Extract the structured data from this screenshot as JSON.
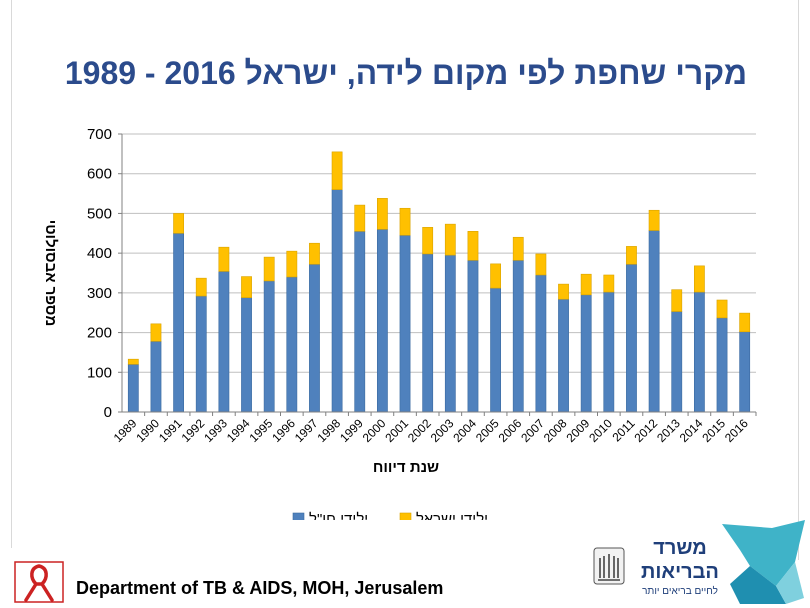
{
  "slide": {
    "title": "מקרי שחפת לפי מקום לידה, ישראל 2016 - 1989",
    "footer": "Department of TB & AIDS, MOH, Jerusalem",
    "logo_text": {
      "line1": "משרד",
      "line2": "הבריאות",
      "line3": "לחיים בריאים יותר"
    }
  },
  "chart_data": {
    "type": "bar",
    "stacked": true,
    "title": "מקרי שחפת לפי מקום לידה, ישראל 2016 - 1989",
    "xlabel": "שנת דיווח",
    "ylabel": "מספר אבסולוטי",
    "ylim": [
      0,
      700
    ],
    "yticks": [
      0,
      100,
      200,
      300,
      400,
      500,
      600,
      700
    ],
    "grid": true,
    "legend_position": "bottom",
    "categories": [
      "1989",
      "1990",
      "1991",
      "1992",
      "1993",
      "1994",
      "1995",
      "1996",
      "1997",
      "1998",
      "1999",
      "2000",
      "2001",
      "2002",
      "2003",
      "2004",
      "2005",
      "2006",
      "2007",
      "2008",
      "2009",
      "2010",
      "2011",
      "2012",
      "2013",
      "2014",
      "2015",
      "2016"
    ],
    "series": [
      {
        "name": "ילידי חו\"ל",
        "color": "#4f81bd",
        "values": [
          120,
          178,
          450,
          292,
          354,
          288,
          330,
          340,
          372,
          560,
          455,
          460,
          445,
          398,
          395,
          382,
          312,
          382,
          345,
          284,
          295,
          302,
          372,
          457,
          253,
          302,
          237,
          202
        ]
      },
      {
        "name": "ילידי ישראל",
        "color": "#ffc000",
        "values": [
          13,
          44,
          50,
          45,
          61,
          53,
          60,
          65,
          53,
          95,
          66,
          78,
          68,
          67,
          78,
          73,
          61,
          58,
          53,
          38,
          52,
          43,
          45,
          51,
          55,
          66,
          45,
          47
        ]
      }
    ]
  }
}
